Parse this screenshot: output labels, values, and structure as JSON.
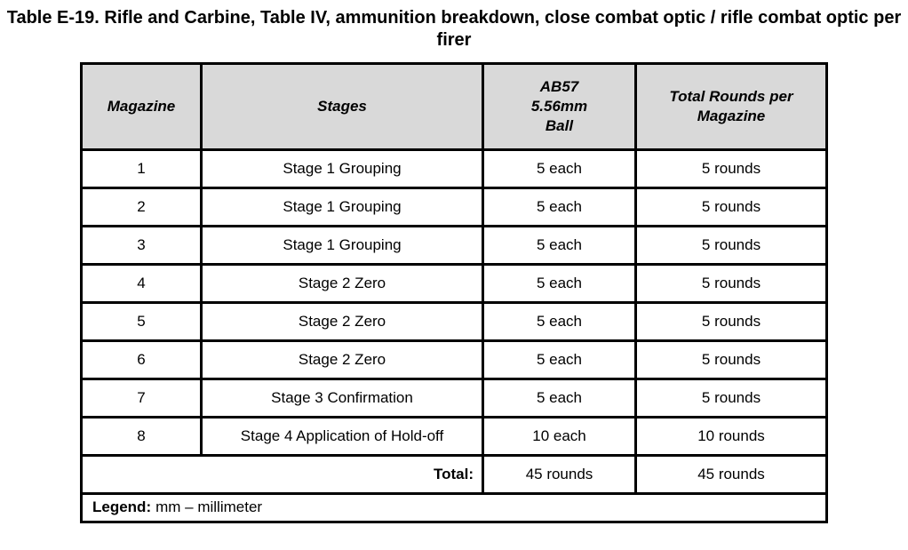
{
  "title": {
    "text": "Table E-19. Rifle and Carbine, Table IV, ammunition breakdown, close combat optic / rifle combat optic per firer"
  },
  "table": {
    "headers": {
      "magazine": "Magazine",
      "stages": "Stages",
      "ab57_lines": [
        "AB57",
        "5.56mm",
        "Ball"
      ],
      "total_rounds": "Total Rounds per Magazine"
    },
    "rows": [
      {
        "magazine": "1",
        "stage": "Stage 1 Grouping",
        "ab57": "5 each",
        "total": "5 rounds"
      },
      {
        "magazine": "2",
        "stage": "Stage 1 Grouping",
        "ab57": "5 each",
        "total": "5 rounds"
      },
      {
        "magazine": "3",
        "stage": "Stage 1 Grouping",
        "ab57": "5 each",
        "total": "5 rounds"
      },
      {
        "magazine": "4",
        "stage": "Stage 2 Zero",
        "ab57": "5 each",
        "total": "5 rounds"
      },
      {
        "magazine": "5",
        "stage": "Stage 2 Zero",
        "ab57": "5 each",
        "total": "5 rounds"
      },
      {
        "magazine": "6",
        "stage": "Stage 2 Zero",
        "ab57": "5 each",
        "total": "5 rounds"
      },
      {
        "magazine": "7",
        "stage": "Stage 3 Confirmation",
        "ab57": "5 each",
        "total": "5 rounds"
      },
      {
        "magazine": "8",
        "stage": "Stage 4 Application of Hold-off",
        "ab57": "10 each",
        "total": "10 rounds"
      }
    ],
    "total_row": {
      "label": "Total:",
      "ab57": "45 rounds",
      "total": "45 rounds"
    },
    "legend": {
      "label": "Legend:",
      "text": "mm – millimeter"
    }
  },
  "colors": {
    "header_bg": "#d9d9d9",
    "border": "#000000",
    "text": "#000000",
    "page_bg": "#ffffff"
  }
}
